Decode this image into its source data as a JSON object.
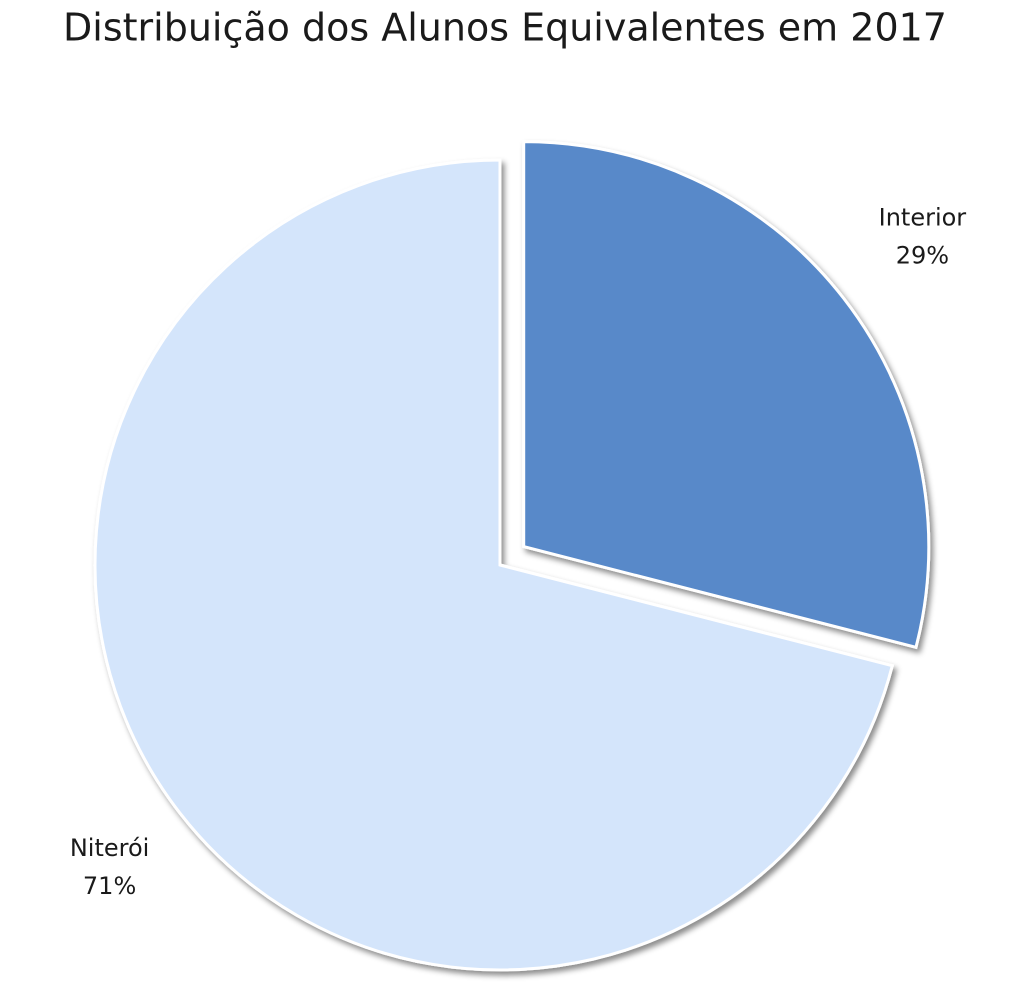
{
  "chart_data": {
    "type": "pie",
    "title": "Distribuição dos Alunos Equivalentes em 2017",
    "categories": [
      "Interior",
      "Niterói"
    ],
    "values": [
      29,
      71
    ],
    "value_labels": [
      "29%",
      "71%"
    ],
    "colors": [
      "#5889c9",
      "#d4e5fb"
    ]
  }
}
